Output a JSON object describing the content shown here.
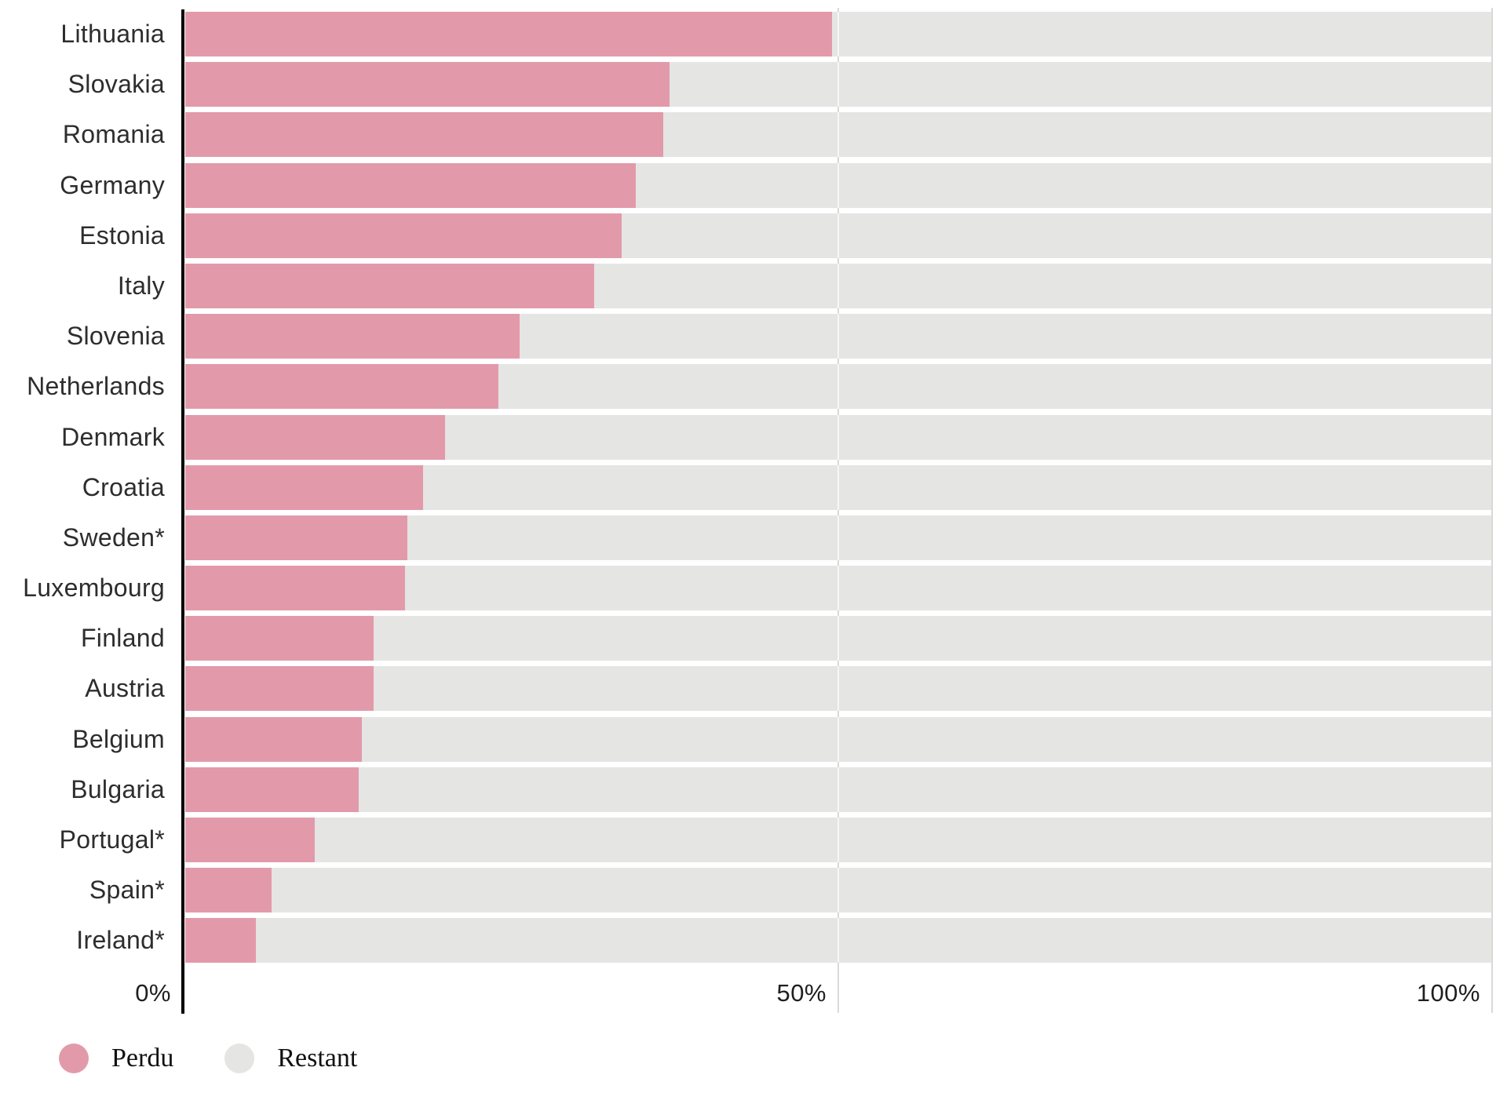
{
  "chart_data": {
    "type": "bar",
    "orientation": "horizontal",
    "stacked_to_100_percent": true,
    "title": "",
    "xlabel": "",
    "ylabel": "",
    "xlim": [
      0,
      100
    ],
    "grid": "vertical gridlines at 50% and 100%, solid black axis at 0%",
    "categories": [
      "Lithuania",
      "Slovakia",
      "Romania",
      "Germany",
      "Estonia",
      "Italy",
      "Slovenia",
      "Netherlands",
      "Denmark",
      "Croatia",
      "Sweden*",
      "Luxembourg",
      "Finland",
      "Austria",
      "Belgium",
      "Bulgaria",
      "Portugal*",
      "Spain*",
      "Ireland*"
    ],
    "series": [
      {
        "name": "Perdu",
        "color": "#e29aaa",
        "values": [
          49.5,
          37.1,
          36.6,
          34.5,
          33.4,
          31.3,
          25.6,
          24.0,
          19.9,
          18.2,
          17.0,
          16.8,
          14.4,
          14.4,
          13.5,
          13.3,
          9.9,
          6.6,
          5.4
        ]
      },
      {
        "name": "Restant",
        "color": "#e5e5e4",
        "values": [
          50.5,
          62.9,
          63.4,
          65.5,
          66.6,
          68.7,
          74.4,
          76.0,
          80.1,
          81.8,
          83.0,
          83.2,
          85.6,
          85.6,
          86.5,
          86.7,
          90.1,
          93.4,
          94.6
        ]
      }
    ],
    "xticks": [
      {
        "value": 0,
        "label": "0%"
      },
      {
        "value": 50,
        "label": "50%"
      },
      {
        "value": 100,
        "label": "100%"
      }
    ],
    "legend": {
      "position": "bottom-left",
      "items": [
        {
          "label": "Perdu",
          "color": "#e29aaa"
        },
        {
          "label": "Restant",
          "color": "#e5e5e4"
        }
      ]
    }
  },
  "colors": {
    "background": "#ffffff",
    "axis_line": "#000000",
    "gridline": "#d9d9d8",
    "country_label_text": "#2d2d2d",
    "tick_label_text": "#1f1f1f",
    "legend_text": "#111111"
  }
}
